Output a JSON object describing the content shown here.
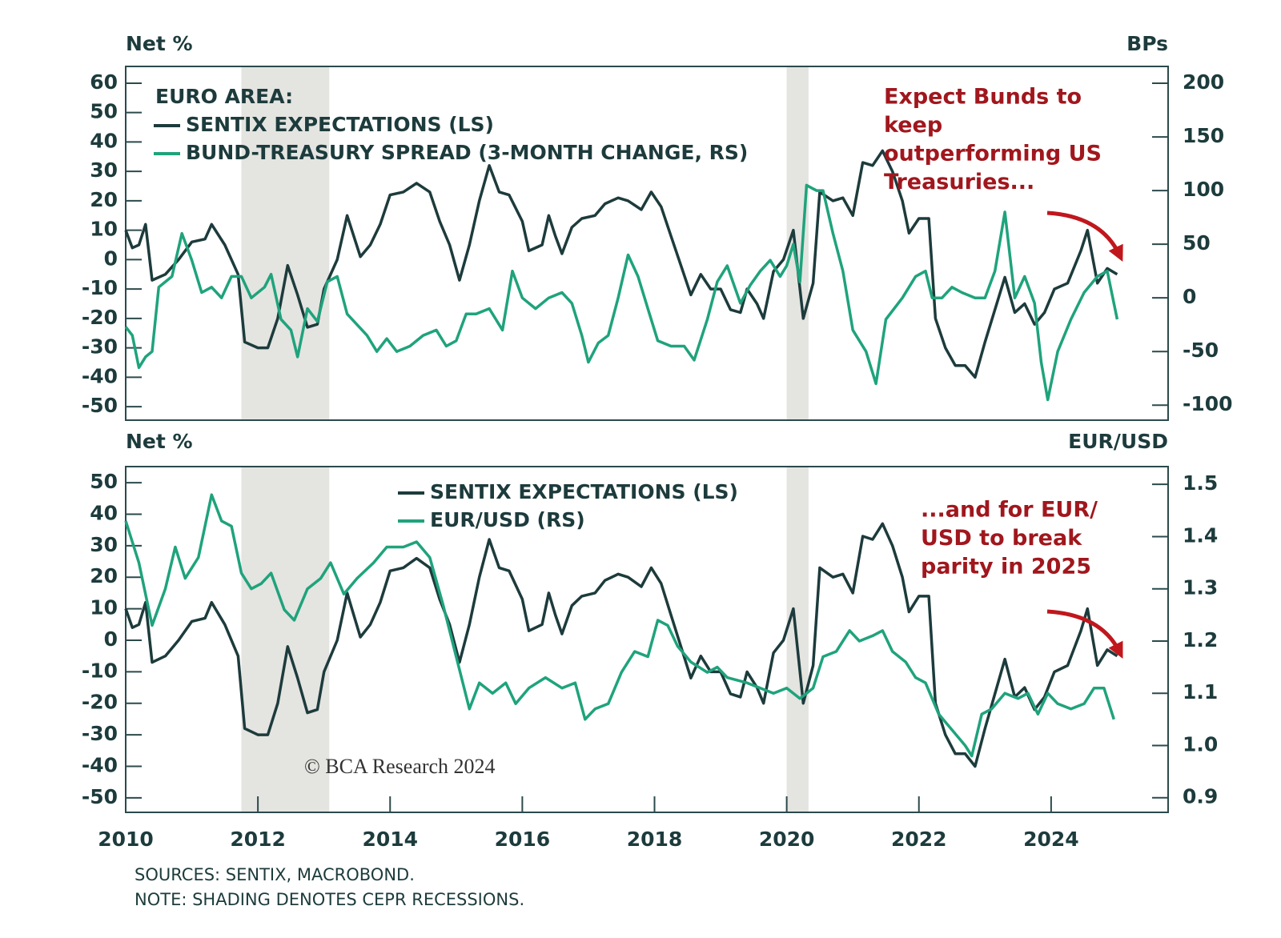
{
  "chart_data": [
    {
      "type": "line",
      "y_label": "Net %",
      "y2_label": "BPs",
      "legend_title": "EURO AREA:",
      "annotation": [
        "Expect Bunds to",
        "keep",
        "outperforming US",
        "Treasuries..."
      ],
      "xlim": [
        2010,
        2025.77
      ],
      "ylim": [
        -54.6,
        65.7
      ],
      "yticks": [
        60,
        50,
        40,
        30,
        20,
        10,
        0,
        -10,
        -20,
        -30,
        -40,
        -50
      ],
      "y2lim": [
        -114,
        215.7
      ],
      "y2ticks": [
        200,
        150,
        100,
        50,
        0,
        -50,
        -100
      ],
      "shading": [
        [
          2011.75,
          2013.08
        ],
        [
          2020.0,
          2020.33
        ]
      ],
      "series": [
        {
          "name": "SENTIX EXPECTATIONS (LS)",
          "color": "#1d3b3c",
          "x": [
            2010.0,
            2010.1,
            2010.2,
            2010.3,
            2010.4,
            2010.6,
            2010.8,
            2011.0,
            2011.2,
            2011.3,
            2011.5,
            2011.7,
            2011.8,
            2012.0,
            2012.15,
            2012.3,
            2012.45,
            2012.6,
            2012.75,
            2012.9,
            2013.0,
            2013.2,
            2013.35,
            2013.55,
            2013.7,
            2013.85,
            2014.0,
            2014.2,
            2014.4,
            2014.6,
            2014.75,
            2014.9,
            2015.05,
            2015.2,
            2015.35,
            2015.5,
            2015.65,
            2015.8,
            2016.0,
            2016.1,
            2016.3,
            2016.4,
            2016.5,
            2016.6,
            2016.75,
            2016.9,
            2017.1,
            2017.25,
            2017.45,
            2017.6,
            2017.8,
            2017.95,
            2018.1,
            2018.25,
            2018.4,
            2018.55,
            2018.7,
            2018.85,
            2019.0,
            2019.15,
            2019.3,
            2019.4,
            2019.55,
            2019.65,
            2019.8,
            2019.95,
            2020.1,
            2020.25,
            2020.4,
            2020.5,
            2020.7,
            2020.85,
            2021.0,
            2021.15,
            2021.3,
            2021.45,
            2021.6,
            2021.75,
            2021.85,
            2022.0,
            2022.15,
            2022.25,
            2022.4,
            2022.55,
            2022.7,
            2022.85,
            2023.0,
            2023.15,
            2023.3,
            2023.45,
            2023.6,
            2023.75,
            2023.9,
            2024.05,
            2024.25,
            2024.45,
            2024.55,
            2024.7,
            2024.85,
            2025.0
          ],
          "values": [
            10,
            4,
            5,
            12,
            -7,
            -5,
            0,
            6,
            7,
            12,
            5,
            -5,
            -28,
            -30,
            -30,
            -20,
            -2,
            -12,
            -23,
            -22,
            -10,
            0,
            15,
            1,
            5,
            12,
            22,
            23,
            26,
            23,
            13,
            5,
            -7,
            5,
            20,
            32,
            23,
            22,
            13,
            3,
            5,
            15,
            8,
            2,
            11,
            14,
            15,
            19,
            21,
            20,
            17,
            23,
            18,
            8,
            -2,
            -12,
            -5,
            -10,
            -10,
            -17,
            -18,
            -10,
            -15,
            -20,
            -4,
            0,
            10,
            -20,
            -8,
            23,
            20,
            21,
            15,
            33,
            32,
            37,
            30,
            20,
            9,
            14,
            14,
            -20,
            -30,
            -36,
            -36,
            -40,
            -28,
            -17,
            -6,
            -18,
            -15,
            -22,
            -18,
            -10,
            -8,
            3,
            10,
            -8,
            -3,
            -5
          ]
        },
        {
          "name": "BUND-TREASURY SPREAD (3-MONTH CHANGE, RS)",
          "color": "#1fa37c",
          "axis": "y2",
          "x": [
            2010.0,
            2010.1,
            2010.2,
            2010.3,
            2010.4,
            2010.5,
            2010.6,
            2010.7,
            2010.85,
            2011.0,
            2011.15,
            2011.3,
            2011.45,
            2011.6,
            2011.75,
            2011.9,
            2012.1,
            2012.2,
            2012.35,
            2012.5,
            2012.6,
            2012.75,
            2012.9,
            2013.05,
            2013.2,
            2013.35,
            2013.5,
            2013.65,
            2013.8,
            2013.95,
            2014.1,
            2014.3,
            2014.5,
            2014.7,
            2014.85,
            2015.0,
            2015.15,
            2015.3,
            2015.5,
            2015.7,
            2015.85,
            2016.0,
            2016.2,
            2016.4,
            2016.6,
            2016.75,
            2016.9,
            2017.0,
            2017.15,
            2017.3,
            2017.45,
            2017.6,
            2017.75,
            2017.9,
            2018.05,
            2018.25,
            2018.45,
            2018.6,
            2018.8,
            2018.95,
            2019.1,
            2019.3,
            2019.45,
            2019.6,
            2019.75,
            2019.9,
            2020.0,
            2020.1,
            2020.2,
            2020.3,
            2020.45,
            2020.55,
            2020.7,
            2020.85,
            2021.0,
            2021.2,
            2021.35,
            2021.5,
            2021.75,
            2021.95,
            2022.1,
            2022.2,
            2022.35,
            2022.5,
            2022.65,
            2022.85,
            2023.0,
            2023.15,
            2023.3,
            2023.45,
            2023.6,
            2023.75,
            2023.85,
            2023.95,
            2024.1,
            2024.3,
            2024.5,
            2024.7,
            2024.85,
            2025.0
          ],
          "values": [
            -27,
            -35,
            -65,
            -55,
            -50,
            10,
            15,
            20,
            60,
            35,
            5,
            10,
            0,
            20,
            20,
            0,
            10,
            22,
            -20,
            -30,
            -55,
            -10,
            -22,
            15,
            20,
            -15,
            -25,
            -35,
            -50,
            -38,
            -50,
            -45,
            -35,
            -30,
            -45,
            -40,
            -15,
            -15,
            -10,
            -30,
            25,
            0,
            -10,
            0,
            5,
            -5,
            -35,
            -60,
            -42,
            -35,
            0,
            40,
            20,
            -10,
            -40,
            -45,
            -45,
            -58,
            -20,
            15,
            30,
            -5,
            12,
            25,
            35,
            20,
            30,
            50,
            15,
            105,
            100,
            100,
            60,
            25,
            -30,
            -50,
            -80,
            -20,
            0,
            20,
            25,
            0,
            0,
            10,
            5,
            0,
            0,
            25,
            80,
            0,
            20,
            -5,
            -60,
            -95,
            -50,
            -20,
            5,
            20,
            25,
            -20
          ]
        }
      ]
    },
    {
      "type": "line",
      "y_label": "Net %",
      "y2_label": "EUR/USD",
      "annotation": [
        "...and for EUR/",
        "USD to break",
        "parity in 2025"
      ],
      "xlim": [
        2010,
        2025.77
      ],
      "xticks": [
        2010,
        2012,
        2014,
        2016,
        2018,
        2020,
        2022,
        2024
      ],
      "ylim": [
        -54.6,
        55.1
      ],
      "yticks": [
        50,
        40,
        30,
        20,
        10,
        0,
        -10,
        -20,
        -30,
        -40,
        -50
      ],
      "y2lim": [
        0.872,
        1.534
      ],
      "y2ticks": [
        1.5,
        1.4,
        1.3,
        1.2,
        1.1,
        {
          "value": 1,
          "label": "1.0"
        },
        0.9
      ],
      "shading": [
        [
          2011.75,
          2013.08
        ],
        [
          2020.0,
          2020.33
        ]
      ],
      "series": [
        {
          "name": "SENTIX EXPECTATIONS (LS)",
          "color": "#1d3b3c",
          "x": [
            2010.0,
            2010.1,
            2010.2,
            2010.3,
            2010.4,
            2010.6,
            2010.8,
            2011.0,
            2011.2,
            2011.3,
            2011.5,
            2011.7,
            2011.8,
            2012.0,
            2012.15,
            2012.3,
            2012.45,
            2012.6,
            2012.75,
            2012.9,
            2013.0,
            2013.2,
            2013.35,
            2013.55,
            2013.7,
            2013.85,
            2014.0,
            2014.2,
            2014.4,
            2014.6,
            2014.75,
            2014.9,
            2015.05,
            2015.2,
            2015.35,
            2015.5,
            2015.65,
            2015.8,
            2016.0,
            2016.1,
            2016.3,
            2016.4,
            2016.5,
            2016.6,
            2016.75,
            2016.9,
            2017.1,
            2017.25,
            2017.45,
            2017.6,
            2017.8,
            2017.95,
            2018.1,
            2018.25,
            2018.4,
            2018.55,
            2018.7,
            2018.85,
            2019.0,
            2019.15,
            2019.3,
            2019.4,
            2019.55,
            2019.65,
            2019.8,
            2019.95,
            2020.1,
            2020.25,
            2020.4,
            2020.5,
            2020.7,
            2020.85,
            2021.0,
            2021.15,
            2021.3,
            2021.45,
            2021.6,
            2021.75,
            2021.85,
            2022.0,
            2022.15,
            2022.25,
            2022.4,
            2022.55,
            2022.7,
            2022.85,
            2023.0,
            2023.15,
            2023.3,
            2023.45,
            2023.6,
            2023.75,
            2023.9,
            2024.05,
            2024.25,
            2024.45,
            2024.55,
            2024.7,
            2024.85,
            2025.0
          ],
          "values": [
            10,
            4,
            5,
            12,
            -7,
            -5,
            0,
            6,
            7,
            12,
            5,
            -5,
            -28,
            -30,
            -30,
            -20,
            -2,
            -12,
            -23,
            -22,
            -10,
            0,
            15,
            1,
            5,
            12,
            22,
            23,
            26,
            23,
            13,
            5,
            -7,
            5,
            20,
            32,
            23,
            22,
            13,
            3,
            5,
            15,
            8,
            2,
            11,
            14,
            15,
            19,
            21,
            20,
            17,
            23,
            18,
            8,
            -2,
            -12,
            -5,
            -10,
            -10,
            -17,
            -18,
            -10,
            -15,
            -20,
            -4,
            0,
            10,
            -20,
            -8,
            23,
            20,
            21,
            15,
            33,
            32,
            37,
            30,
            20,
            9,
            14,
            14,
            -20,
            -30,
            -36,
            -36,
            -40,
            -28,
            -17,
            -6,
            -18,
            -15,
            -22,
            -18,
            -10,
            -8,
            3,
            10,
            -8,
            -3,
            -5
          ]
        },
        {
          "name": "EUR/USD (RS)",
          "color": "#1fa37c",
          "axis": "y2",
          "x": [
            2010.0,
            2010.2,
            2010.4,
            2010.6,
            2010.75,
            2010.9,
            2011.1,
            2011.3,
            2011.45,
            2011.6,
            2011.75,
            2011.9,
            2012.05,
            2012.2,
            2012.4,
            2012.55,
            2012.75,
            2012.95,
            2013.1,
            2013.3,
            2013.5,
            2013.75,
            2013.95,
            2014.2,
            2014.4,
            2014.6,
            2014.8,
            2015.0,
            2015.2,
            2015.35,
            2015.55,
            2015.75,
            2015.9,
            2016.1,
            2016.35,
            2016.6,
            2016.8,
            2016.95,
            2017.1,
            2017.3,
            2017.5,
            2017.7,
            2017.9,
            2018.05,
            2018.2,
            2018.35,
            2018.55,
            2018.8,
            2018.95,
            2019.1,
            2019.4,
            2019.6,
            2019.8,
            2020.0,
            2020.2,
            2020.4,
            2020.55,
            2020.75,
            2020.95,
            2021.1,
            2021.3,
            2021.45,
            2021.6,
            2021.8,
            2021.95,
            2022.1,
            2022.3,
            2022.5,
            2022.7,
            2022.8,
            2022.95,
            2023.1,
            2023.3,
            2023.5,
            2023.65,
            2023.8,
            2023.95,
            2024.1,
            2024.3,
            2024.5,
            2024.65,
            2024.8,
            2024.95
          ],
          "values": [
            1.43,
            1.35,
            1.23,
            1.3,
            1.38,
            1.32,
            1.36,
            1.48,
            1.43,
            1.42,
            1.33,
            1.3,
            1.31,
            1.33,
            1.26,
            1.24,
            1.3,
            1.32,
            1.35,
            1.29,
            1.32,
            1.35,
            1.38,
            1.38,
            1.39,
            1.36,
            1.27,
            1.17,
            1.07,
            1.12,
            1.1,
            1.12,
            1.08,
            1.11,
            1.13,
            1.11,
            1.12,
            1.05,
            1.07,
            1.08,
            1.14,
            1.18,
            1.17,
            1.24,
            1.23,
            1.19,
            1.16,
            1.14,
            1.15,
            1.13,
            1.12,
            1.11,
            1.1,
            1.11,
            1.09,
            1.11,
            1.17,
            1.18,
            1.22,
            1.2,
            1.21,
            1.22,
            1.18,
            1.16,
            1.13,
            1.12,
            1.06,
            1.03,
            1.0,
            0.98,
            1.06,
            1.07,
            1.1,
            1.09,
            1.1,
            1.06,
            1.1,
            1.08,
            1.07,
            1.08,
            1.11,
            1.11,
            1.05
          ]
        }
      ]
    }
  ],
  "copyright": "© BCA Research 2024",
  "sources": "SOURCES: SENTIX, MACROBOND.",
  "note": "NOTE: SHADING DENOTES CEPR RECESSIONS."
}
